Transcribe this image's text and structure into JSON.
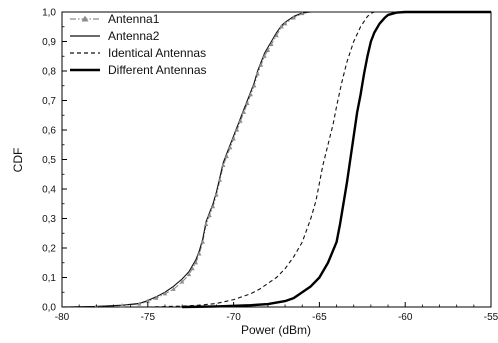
{
  "chart_data": {
    "type": "line",
    "xlabel": "Power (dBm)",
    "ylabel": "CDF",
    "xlim": [
      -80,
      -55
    ],
    "ylim": [
      0,
      1
    ],
    "xticks": [
      "-80",
      "-75",
      "-70",
      "-65",
      "-60",
      "-55"
    ],
    "yticks": [
      "0,0",
      "0,1",
      "0,2",
      "0,3",
      "0,4",
      "0,5",
      "0,6",
      "0,7",
      "0,8",
      "0,9",
      "1,0"
    ],
    "grid": false,
    "legend_position": "top-left",
    "series": [
      {
        "name": "Antenna1",
        "style": "dash-dot gray with triangle markers",
        "color": "#8c8c8c",
        "x": [
          -80,
          -78,
          -76.5,
          -75.5,
          -75,
          -74.5,
          -74,
          -73.5,
          -73,
          -72.6,
          -72.4,
          -72.2,
          -72,
          -71.8,
          -71.6,
          -71.4,
          -71.2,
          -71,
          -70.8,
          -70.6,
          -70.4,
          -70.2,
          -70,
          -69.8,
          -69.6,
          -69.4,
          -69.2,
          -69,
          -68.8,
          -68.6,
          -68.4,
          -68.2,
          -68,
          -67.8,
          -67.5,
          -67.2,
          -67,
          -66.5,
          -66,
          -65.5
        ],
        "y": [
          0.0,
          0.002,
          0.005,
          0.01,
          0.02,
          0.03,
          0.045,
          0.06,
          0.085,
          0.11,
          0.13,
          0.15,
          0.18,
          0.22,
          0.28,
          0.31,
          0.34,
          0.38,
          0.43,
          0.48,
          0.51,
          0.54,
          0.57,
          0.6,
          0.63,
          0.66,
          0.69,
          0.72,
          0.75,
          0.79,
          0.82,
          0.85,
          0.87,
          0.89,
          0.92,
          0.95,
          0.96,
          0.98,
          0.995,
          1.0
        ]
      },
      {
        "name": "Antenna2",
        "style": "solid thin black",
        "color": "#111111",
        "x": [
          -80,
          -78,
          -76.5,
          -75.5,
          -75,
          -74.5,
          -74,
          -73.5,
          -73,
          -72.6,
          -72.4,
          -72.2,
          -72,
          -71.8,
          -71.6,
          -71.4,
          -71.2,
          -71,
          -70.8,
          -70.6,
          -70.4,
          -70.2,
          -70,
          -69.8,
          -69.6,
          -69.4,
          -69.2,
          -69,
          -68.8,
          -68.6,
          -68.4,
          -68.2,
          -68,
          -67.8,
          -67.5,
          -67.2,
          -67,
          -66.5,
          -66,
          -65.5
        ],
        "y": [
          0.0,
          0.002,
          0.006,
          0.012,
          0.022,
          0.035,
          0.05,
          0.07,
          0.095,
          0.12,
          0.14,
          0.16,
          0.19,
          0.23,
          0.29,
          0.32,
          0.35,
          0.39,
          0.44,
          0.49,
          0.52,
          0.55,
          0.58,
          0.61,
          0.64,
          0.67,
          0.7,
          0.73,
          0.76,
          0.8,
          0.83,
          0.86,
          0.88,
          0.9,
          0.93,
          0.955,
          0.965,
          0.985,
          0.997,
          1.0
        ]
      },
      {
        "name": "Identical Antennas",
        "style": "dashed black",
        "color": "#111111",
        "x": [
          -75,
          -73,
          -72,
          -71,
          -70,
          -69,
          -68.5,
          -68,
          -67.5,
          -67,
          -66.5,
          -66,
          -65.5,
          -65.2,
          -65,
          -64.8,
          -64.5,
          -64.2,
          -64,
          -63.7,
          -63.4,
          -63,
          -62.6,
          -62.2,
          -62,
          -61.8
        ],
        "y": [
          0.0,
          0.003,
          0.006,
          0.012,
          0.025,
          0.045,
          0.06,
          0.08,
          0.1,
          0.13,
          0.17,
          0.22,
          0.3,
          0.36,
          0.42,
          0.48,
          0.55,
          0.62,
          0.68,
          0.76,
          0.83,
          0.9,
          0.95,
          0.985,
          0.995,
          1.0
        ]
      },
      {
        "name": "Different Antennas",
        "style": "solid thick black",
        "color": "#000000",
        "x": [
          -73,
          -71,
          -70,
          -69,
          -68,
          -67,
          -66.5,
          -66,
          -65.5,
          -65,
          -64.5,
          -64,
          -63.8,
          -63.6,
          -63.4,
          -63.2,
          -63,
          -62.8,
          -62.6,
          -62.4,
          -62.2,
          -62,
          -61.8,
          -61.5,
          -61.2,
          -61,
          -60.5,
          -60
        ],
        "y": [
          0.0,
          0.002,
          0.004,
          0.006,
          0.01,
          0.02,
          0.03,
          0.05,
          0.07,
          0.1,
          0.15,
          0.22,
          0.28,
          0.35,
          0.42,
          0.5,
          0.58,
          0.66,
          0.72,
          0.79,
          0.85,
          0.9,
          0.93,
          0.96,
          0.98,
          0.99,
          0.998,
          1.0
        ]
      }
    ]
  }
}
